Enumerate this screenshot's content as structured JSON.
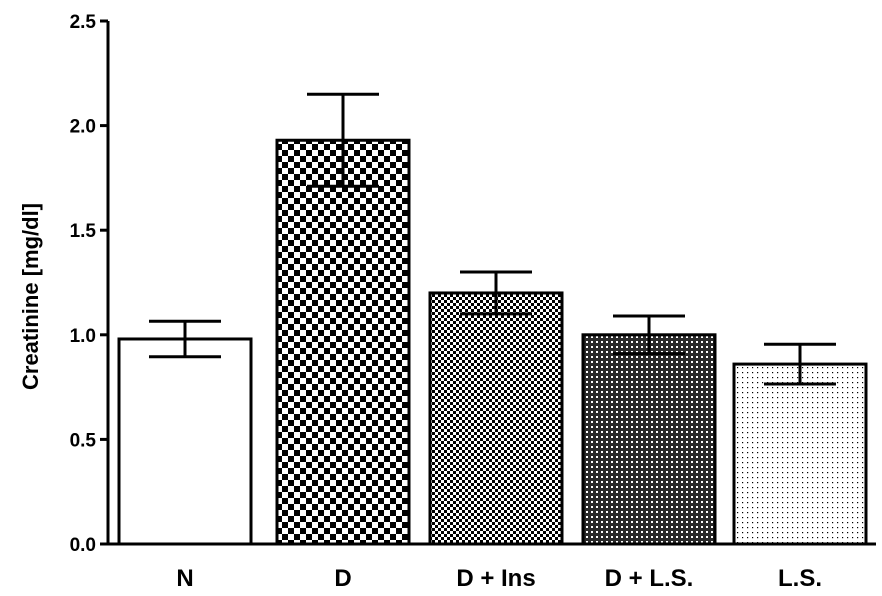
{
  "chart_data": {
    "type": "bar",
    "title": "",
    "xlabel": "",
    "ylabel": "Creatinine [mg/dl]",
    "ylim": [
      0,
      2.5
    ],
    "yticks": [
      "0.0",
      "0.5",
      "1.0",
      "1.5",
      "2.0",
      "2.5"
    ],
    "categories": [
      "N",
      "D",
      "D + Ins",
      "D + L.S.",
      "L.S."
    ],
    "values": [
      0.98,
      1.93,
      1.2,
      1.0,
      0.86
    ],
    "errors": [
      0.085,
      0.22,
      0.1,
      0.09,
      0.095
    ],
    "fill_patterns": [
      "solid-white",
      "large-checker",
      "fine-checker",
      "cross-hatch",
      "dotted"
    ],
    "grid": false,
    "legend": "none"
  }
}
